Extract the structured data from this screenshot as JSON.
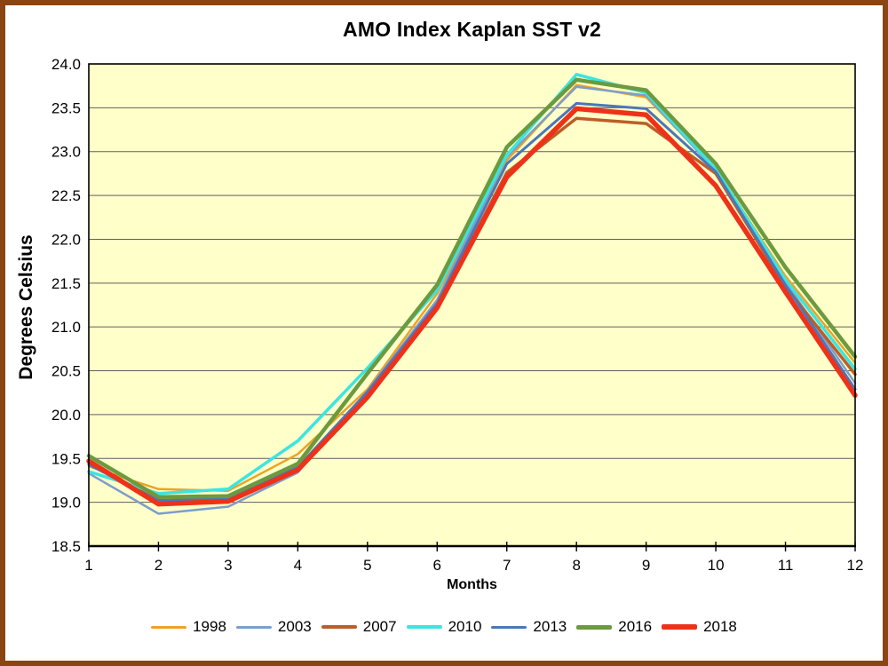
{
  "frame": {
    "border_color": "#8A4512",
    "background": "#FFFFFF"
  },
  "chart_data": {
    "type": "line",
    "title": "AMO Index Kaplan SST v2",
    "xlabel": "Months",
    "ylabel": "Degrees Celsius",
    "categories": [
      1,
      2,
      3,
      4,
      5,
      6,
      7,
      8,
      9,
      10,
      11,
      12
    ],
    "xtick_labels": [
      "1",
      "2",
      "3",
      "4",
      "5",
      "6",
      "7",
      "8",
      "9",
      "10",
      "11",
      "12"
    ],
    "ytick_labels": [
      "24.0",
      "23.5",
      "23.0",
      "22.5",
      "22.0",
      "21.5",
      "21.0",
      "20.5",
      "20.0",
      "19.5",
      "19.0",
      "18.5"
    ],
    "ylim": [
      18.5,
      24.0
    ],
    "ytick_step": 0.5,
    "grid": true,
    "grid_color": "#5F5F5F",
    "plot_bg": "#FFFFC9",
    "legend_position": "bottom",
    "series": [
      {
        "name": "1998",
        "color": "#EDA128",
        "width": 2.5,
        "values": [
          19.41,
          19.15,
          19.13,
          19.55,
          20.29,
          21.38,
          22.9,
          23.76,
          23.62,
          22.8,
          21.58,
          20.59
        ]
      },
      {
        "name": "2003",
        "color": "#7E9DCB",
        "width": 2.5,
        "values": [
          19.33,
          18.87,
          18.95,
          19.34,
          20.27,
          21.31,
          22.94,
          23.74,
          23.64,
          22.78,
          21.51,
          20.36
        ]
      },
      {
        "name": "2007",
        "color": "#BC5E27",
        "width": 3.5,
        "values": [
          19.45,
          19.02,
          19.04,
          19.38,
          20.22,
          21.24,
          22.76,
          23.38,
          23.32,
          22.75,
          21.46,
          20.46
        ]
      },
      {
        "name": "2010",
        "color": "#3BE5E0",
        "width": 3.5,
        "values": [
          19.35,
          19.1,
          19.15,
          19.7,
          20.53,
          21.42,
          22.96,
          23.88,
          23.67,
          22.8,
          21.54,
          20.52
        ]
      },
      {
        "name": "2013",
        "color": "#4C76BB",
        "width": 3,
        "values": [
          19.43,
          19.02,
          19.04,
          19.4,
          20.26,
          21.27,
          22.86,
          23.55,
          23.49,
          22.77,
          21.48,
          20.29
        ]
      },
      {
        "name": "2016",
        "color": "#6B9A3F",
        "width": 4.5,
        "values": [
          19.53,
          19.06,
          19.07,
          19.44,
          20.47,
          21.48,
          23.05,
          23.82,
          23.7,
          22.86,
          21.68,
          20.66
        ]
      },
      {
        "name": "2018",
        "color": "#EE3119",
        "width": 5.5,
        "values": [
          19.47,
          18.98,
          19.01,
          19.37,
          20.2,
          21.22,
          22.71,
          23.49,
          23.42,
          22.61,
          21.4,
          20.22
        ]
      }
    ]
  }
}
